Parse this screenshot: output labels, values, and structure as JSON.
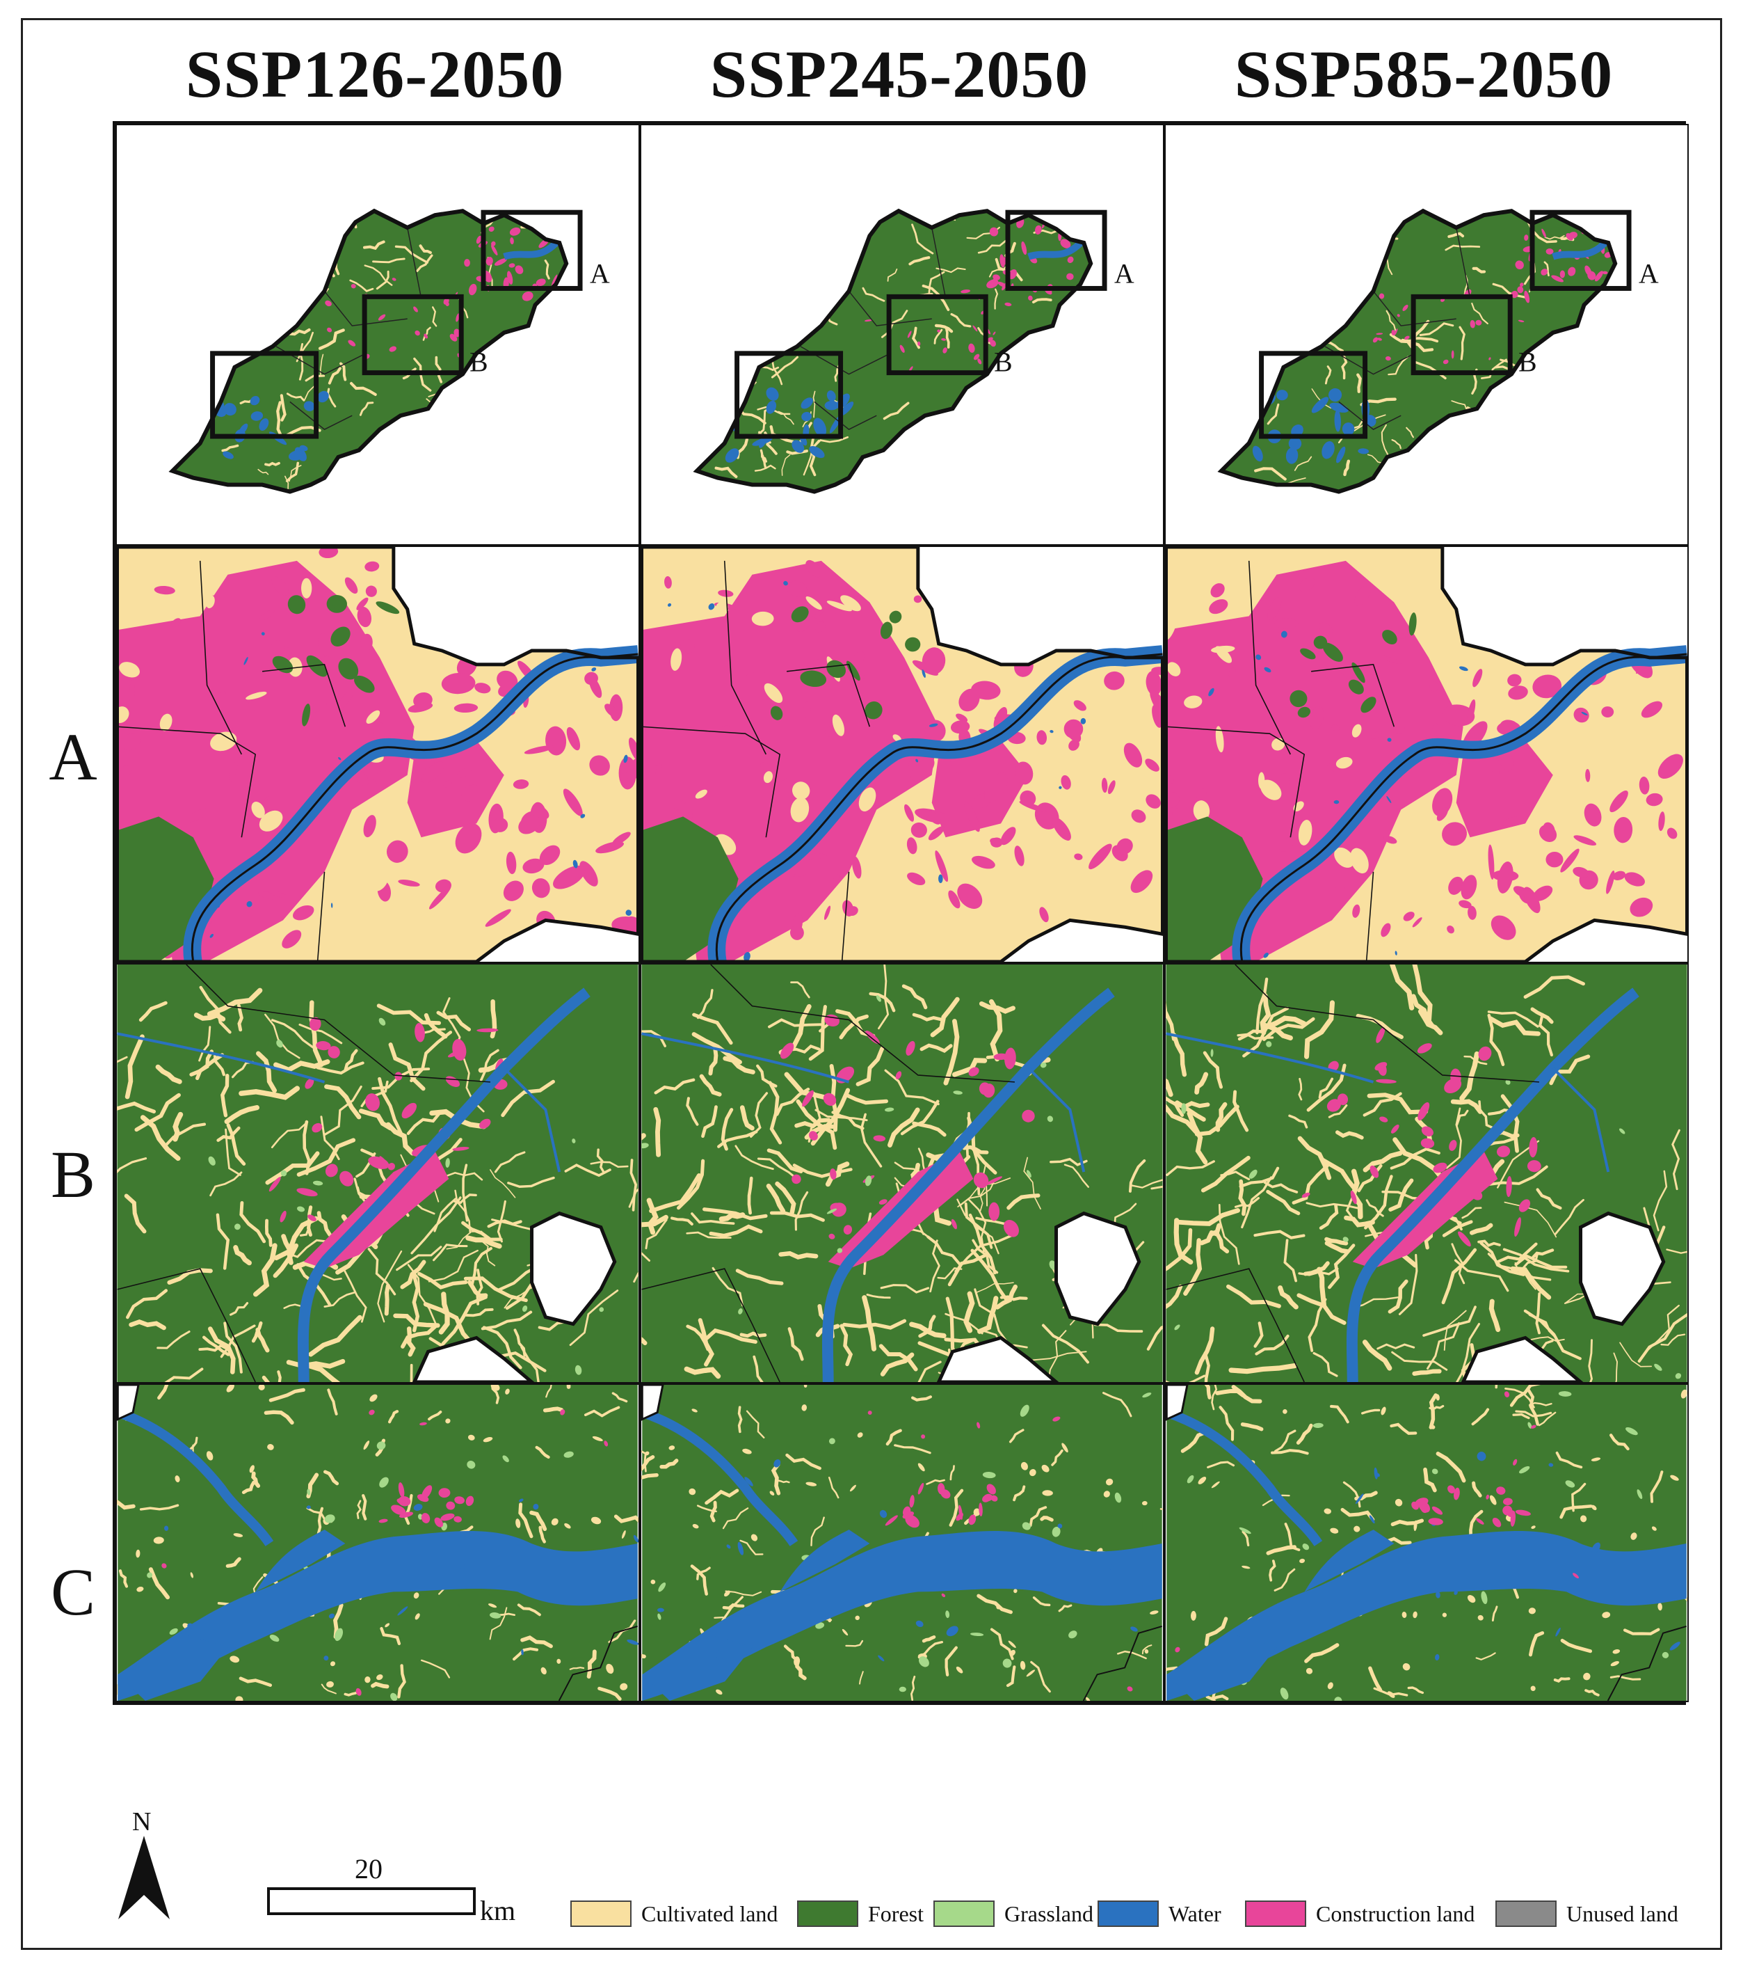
{
  "columns": [
    "SSP126-2050",
    "SSP245-2050",
    "SSP585-2050"
  ],
  "rows": [
    "A",
    "B",
    "C"
  ],
  "overview": {
    "inset_labels": [
      "A",
      "B"
    ]
  },
  "north_label": "N",
  "scale": {
    "value": "20",
    "unit": "km"
  },
  "legend": [
    {
      "label": "Cultivated land",
      "color": "#f9e0a0"
    },
    {
      "label": "Forest",
      "color": "#3f7a30"
    },
    {
      "label": "Grassland",
      "color": "#a6d98a"
    },
    {
      "label": "Water",
      "color": "#2a72c0"
    },
    {
      "label": "Construction land",
      "color": "#e8459a"
    },
    {
      "label": "Unused land",
      "color": "#8a8a8a"
    }
  ]
}
